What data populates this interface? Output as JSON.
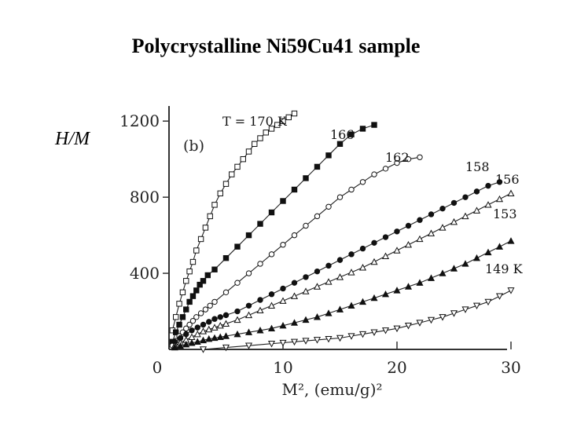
{
  "title": "Polycrystalline Ni59Cu41 sample",
  "chart_data": {
    "type": "scatter",
    "ylabel": "H/M",
    "xlabel": "M², (emu/g)²",
    "panel_label": "(b)",
    "xlim": [
      0,
      30
    ],
    "ylim": [
      0,
      1300
    ],
    "x_ticks": [
      "0",
      "10",
      "20",
      "30"
    ],
    "x_tick_values": [
      0,
      10,
      20,
      30
    ],
    "y_ticks": [
      "400",
      "800",
      "1200"
    ],
    "y_tick_values": [
      400,
      800,
      1200
    ],
    "series": [
      {
        "name": "T = 170 K",
        "marker": "open-square",
        "x": [
          0.3,
          0.6,
          0.9,
          1.2,
          1.5,
          1.8,
          2.1,
          2.4,
          2.8,
          3.2,
          3.6,
          4.0,
          4.5,
          5.0,
          5.5,
          6.0,
          6.5,
          7.0,
          7.5,
          8.0,
          8.5,
          9.0,
          9.5,
          10.0,
          10.5,
          11.0
        ],
        "y": [
          100,
          170,
          240,
          300,
          360,
          410,
          460,
          520,
          580,
          640,
          700,
          760,
          820,
          870,
          920,
          960,
          1000,
          1040,
          1080,
          1110,
          1140,
          1160,
          1180,
          1200,
          1220,
          1240
        ]
      },
      {
        "name": "166",
        "marker": "filled-square",
        "x": [
          0.3,
          0.6,
          0.9,
          1.2,
          1.5,
          1.8,
          2.1,
          2.4,
          2.7,
          3.0,
          3.4,
          4.0,
          5,
          6,
          7,
          8,
          9,
          10,
          11,
          12,
          13,
          14,
          15,
          16,
          17,
          18
        ],
        "y": [
          40,
          90,
          130,
          170,
          210,
          250,
          280,
          310,
          340,
          360,
          390,
          420,
          480,
          540,
          600,
          660,
          720,
          780,
          840,
          900,
          960,
          1020,
          1080,
          1130,
          1160,
          1180
        ]
      },
      {
        "name": "162",
        "marker": "open-circle",
        "x": [
          0.3,
          0.6,
          0.9,
          1.2,
          1.5,
          1.8,
          2.1,
          2.4,
          2.8,
          3.2,
          3.6,
          4,
          5,
          6,
          7,
          8,
          9,
          10,
          11,
          12,
          13,
          14,
          15,
          16,
          17,
          18,
          19,
          20,
          21,
          22
        ],
        "y": [
          20,
          45,
          70,
          90,
          110,
          130,
          150,
          170,
          190,
          210,
          230,
          250,
          300,
          350,
          400,
          450,
          500,
          550,
          600,
          650,
          700,
          750,
          800,
          840,
          880,
          920,
          950,
          980,
          1000,
          1010
        ]
      },
      {
        "name": "158",
        "marker": "filled-circle",
        "x": [
          0.5,
          1,
          1.5,
          2,
          2.5,
          3,
          3.5,
          4,
          4.5,
          5,
          6,
          7,
          8,
          9,
          10,
          11,
          12,
          13,
          14,
          15,
          16,
          17,
          18,
          19,
          20,
          21,
          22,
          23,
          24,
          25,
          26,
          27,
          28,
          29
        ],
        "y": [
          40,
          60,
          80,
          100,
          115,
          130,
          145,
          160,
          170,
          180,
          200,
          230,
          260,
          290,
          320,
          350,
          380,
          410,
          440,
          470,
          500,
          530,
          560,
          590,
          620,
          650,
          680,
          710,
          740,
          770,
          800,
          830,
          860,
          880
        ]
      },
      {
        "name": "156",
        "marker": "open-triangle",
        "x": [
          0.5,
          1,
          1.5,
          2,
          2.5,
          3,
          3.5,
          4,
          4.5,
          5,
          6,
          7,
          8,
          9,
          10,
          11,
          12,
          13,
          14,
          15,
          16,
          17,
          18,
          19,
          20,
          21,
          22,
          23,
          24,
          25,
          26,
          27,
          28,
          29,
          30
        ],
        "y": [
          20,
          35,
          50,
          65,
          80,
          95,
          105,
          115,
          125,
          135,
          155,
          180,
          205,
          230,
          255,
          280,
          305,
          330,
          355,
          380,
          405,
          430,
          460,
          490,
          520,
          550,
          580,
          610,
          640,
          670,
          700,
          730,
          760,
          790,
          820
        ]
      },
      {
        "name": "153",
        "marker": "filled-triangle",
        "x": [
          0.5,
          1,
          1.5,
          2,
          2.5,
          3,
          3.5,
          4,
          4.5,
          5,
          6,
          7,
          8,
          9,
          10,
          11,
          12,
          13,
          14,
          15,
          16,
          17,
          18,
          19,
          20,
          21,
          22,
          23,
          24,
          25,
          26,
          27,
          28,
          29,
          30
        ],
        "y": [
          10,
          18,
          26,
          34,
          40,
          48,
          55,
          60,
          65,
          70,
          80,
          90,
          100,
          110,
          125,
          140,
          155,
          170,
          190,
          210,
          230,
          250,
          270,
          290,
          310,
          330,
          350,
          375,
          400,
          425,
          450,
          480,
          510,
          540,
          570
        ]
      },
      {
        "name": "149 K",
        "marker": "open-inverted-triangle",
        "x": [
          3,
          5,
          7,
          9,
          10,
          11,
          12,
          13,
          14,
          15,
          16,
          17,
          18,
          19,
          20,
          21,
          22,
          23,
          24,
          25,
          26,
          27,
          28,
          29,
          30
        ],
        "y": [
          0,
          10,
          20,
          30,
          35,
          40,
          45,
          50,
          55,
          60,
          70,
          80,
          90,
          100,
          110,
          125,
          140,
          155,
          170,
          190,
          210,
          230,
          250,
          280,
          310
        ]
      }
    ]
  }
}
